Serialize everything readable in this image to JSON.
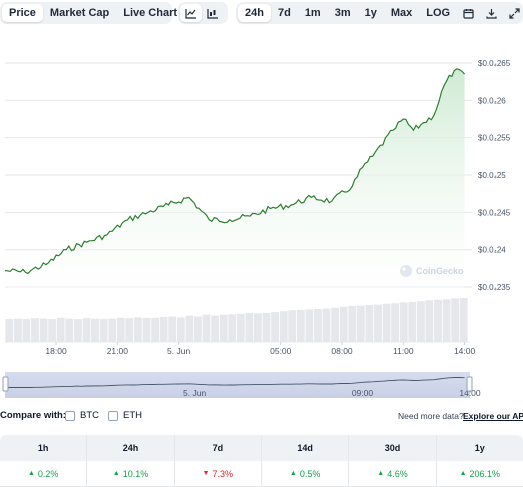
{
  "toolbar": {
    "tabs": [
      {
        "label": "Price",
        "active": true
      },
      {
        "label": "Market Cap",
        "active": false
      },
      {
        "label": "Live Chart",
        "active": false
      }
    ],
    "external_icon": "external-link-icon",
    "chart_type_icons": [
      "line-chart-icon",
      "candlestick-icon"
    ],
    "ranges": [
      {
        "label": "24h",
        "active": true
      },
      {
        "label": "7d",
        "active": false
      },
      {
        "label": "1m",
        "active": false
      },
      {
        "label": "3m",
        "active": false
      },
      {
        "label": "1y",
        "active": false
      },
      {
        "label": "Max",
        "active": false
      },
      {
        "label": "LOG",
        "active": false
      }
    ],
    "tool_icons": [
      "calendar-icon",
      "download-icon",
      "fullscreen-icon"
    ]
  },
  "watermark": "CoinGecko",
  "chart_data": {
    "type": "area",
    "title": "",
    "xlabel": "",
    "ylabel": "",
    "y_tick_labels": [
      "$0.0₄265",
      "$0.0₄26",
      "$0.0₄255",
      "$0.0₄25",
      "$0.0₄245",
      "$0.0₄24",
      "$0.0₄235"
    ],
    "y_tick_values": [
      2.65e-05,
      2.6e-05,
      2.55e-05,
      2.5e-05,
      2.45e-05,
      2.4e-05,
      2.35e-05
    ],
    "ylim": [
      2.33e-05,
      2.67e-05
    ],
    "x_tick_labels": [
      "18:00",
      "21:00",
      "5. Jun",
      "05:00",
      "08:00",
      "11:00",
      "14:00"
    ],
    "series": [
      {
        "x": [
          "15:30",
          "16:30",
          "17:30",
          "18:30",
          "19:30",
          "20:30",
          "21:30",
          "22:30",
          "23:30",
          "00:30",
          "01:30",
          "02:30",
          "03:30",
          "04:30",
          "05:30",
          "06:30",
          "07:30",
          "08:30",
          "09:00",
          "09:30",
          "10:30",
          "11:00",
          "11:30",
          "12:00",
          "12:30",
          "13:00",
          "13:30",
          "14:00"
        ],
        "values": [
          2.372e-05,
          2.37e-05,
          2.38e-05,
          2.4e-05,
          2.41e-05,
          2.42e-05,
          2.44e-05,
          2.45e-05,
          2.46e-05,
          2.47e-05,
          2.44e-05,
          2.44e-05,
          2.445e-05,
          2.455e-05,
          2.46e-05,
          2.47e-05,
          2.465e-05,
          2.485e-05,
          2.51e-05,
          2.525e-05,
          2.56e-05,
          2.575e-05,
          2.56e-05,
          2.57e-05,
          2.58e-05,
          2.62e-05,
          2.64e-05,
          2.635e-05
        ]
      }
    ],
    "line_color": "#2f7d32",
    "fill_color": "#e6f4e8",
    "grid": true,
    "legend": "none"
  },
  "volume": {
    "bar_color": "#e5e7eb",
    "values": [
      0.52,
      0.53,
      0.52,
      0.54,
      0.53,
      0.52,
      0.55,
      0.53,
      0.52,
      0.54,
      0.53,
      0.52,
      0.53,
      0.55,
      0.54,
      0.56,
      0.55,
      0.55,
      0.57,
      0.58,
      0.56,
      0.6,
      0.58,
      0.62,
      0.6,
      0.62,
      0.63,
      0.64,
      0.66,
      0.65,
      0.66,
      0.68,
      0.7,
      0.72,
      0.73,
      0.74,
      0.75,
      0.76,
      0.78,
      0.8,
      0.82,
      0.83,
      0.84,
      0.85,
      0.87,
      0.88,
      0.9,
      0.91,
      0.93,
      0.95,
      0.96,
      0.97,
      0.99,
      1.0
    ]
  },
  "navigator": {
    "labels": [
      "5. Jun",
      "09:00",
      "14:00"
    ],
    "selected_range": [
      0.0,
      1.0
    ]
  },
  "compare": {
    "label": "Compare with:",
    "options": [
      "BTC",
      "ETH"
    ],
    "need_more": "Need more data?",
    "api_link": "Explore our API"
  },
  "performance": {
    "periods": [
      "1h",
      "24h",
      "7d",
      "14d",
      "30d",
      "1y"
    ],
    "values": [
      {
        "text": "0.2%",
        "dir": "up"
      },
      {
        "text": "10.1%",
        "dir": "up"
      },
      {
        "text": "7.3%",
        "dir": "down"
      },
      {
        "text": "0.5%",
        "dir": "up"
      },
      {
        "text": "4.6%",
        "dir": "up"
      },
      {
        "text": "206.1%",
        "dir": "up"
      }
    ],
    "up_color": "#16a34a",
    "down_color": "#dc2626"
  }
}
